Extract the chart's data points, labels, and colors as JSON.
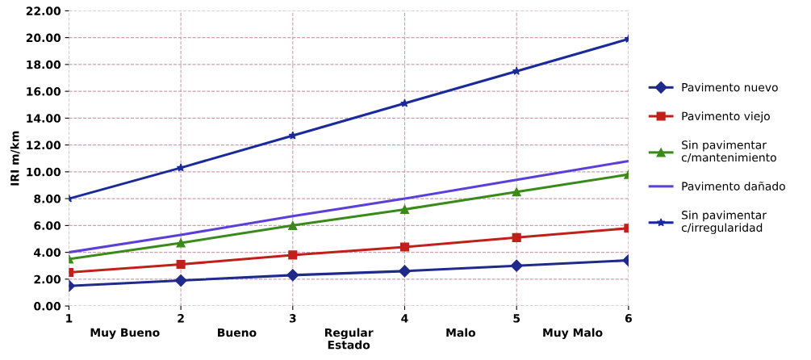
{
  "chart_data": {
    "type": "line",
    "xlabel": "Estado",
    "ylabel": "IRI m/km",
    "x": [
      1,
      2,
      3,
      4,
      5,
      6
    ],
    "series": [
      {
        "name": "Pavimento nuevo",
        "color": "#1f2a8c",
        "marker": "diamond",
        "values": [
          1.5,
          1.9,
          2.3,
          2.6,
          3.0,
          3.4
        ]
      },
      {
        "name": "Pavimento viejo",
        "color": "#c0201a",
        "marker": "square",
        "values": [
          2.5,
          3.1,
          3.8,
          4.4,
          5.1,
          5.8
        ]
      },
      {
        "name": "Sin pavimentar\nc/mantenimiento",
        "color": "#3a8a1a",
        "marker": "triangle",
        "values": [
          3.5,
          4.7,
          6.0,
          7.2,
          8.5,
          9.8
        ]
      },
      {
        "name": "Pavimento dañado",
        "color": "#5a3fd8",
        "marker": "none",
        "values": [
          4.0,
          5.3,
          6.7,
          8.0,
          9.4,
          10.8
        ]
      },
      {
        "name": "Sin pavimentar\nc/irregularidad",
        "color": "#1a2a9a",
        "marker": "star",
        "values": [
          8.0,
          10.3,
          12.7,
          15.1,
          17.5,
          19.9
        ]
      }
    ],
    "xlim": [
      1,
      6
    ],
    "xticks": [
      1,
      2,
      3,
      4,
      5,
      6
    ],
    "ylim": [
      0,
      22
    ],
    "yticks": [
      {
        "value": 0,
        "label": "0.00"
      },
      {
        "value": 2,
        "label": "2.00"
      },
      {
        "value": 4,
        "label": "4.00"
      },
      {
        "value": 6,
        "label": "6.00"
      },
      {
        "value": 8,
        "label": "8.00"
      },
      {
        "value": 10,
        "label": "10.00"
      },
      {
        "value": 12,
        "label": "12.00"
      },
      {
        "value": 14,
        "label": "14.00"
      },
      {
        "value": 16,
        "label": "16.00"
      },
      {
        "value": 18,
        "label": "18.00"
      },
      {
        "value": 20,
        "label": "20.00"
      },
      {
        "value": 22,
        "label": "22.00"
      }
    ],
    "annotations": [
      "Muy Bueno",
      "Bueno",
      "Regular",
      "Malo",
      "Muy Malo"
    ],
    "grid": true,
    "legend": "right",
    "line_style": "solid"
  }
}
